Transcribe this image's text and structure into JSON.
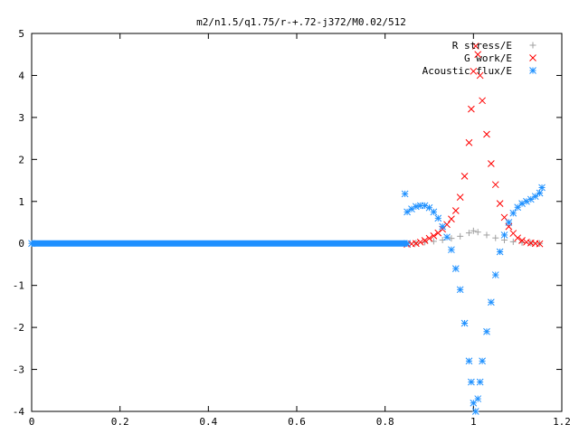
{
  "chart_data": {
    "type": "scatter",
    "title": "m2/n1.5/q1.75/r-+.72-j372/M0.02/512",
    "xlabel": "",
    "ylabel": "",
    "xlim": [
      0,
      1.2
    ],
    "ylim": [
      -4,
      5
    ],
    "x_ticks": [
      "0",
      "0.2",
      "0.4",
      "0.6",
      "0.8",
      "1",
      "1.2"
    ],
    "y_ticks": [
      "-4",
      "-3",
      "-2",
      "-1",
      "0",
      "1",
      "2",
      "3",
      "4",
      "5"
    ],
    "grid": false,
    "legend_position": "top-right",
    "series": [
      {
        "name": "R stress/E",
        "marker": "plus",
        "color": "#a0a0a0",
        "points": [
          [
            0.85,
            0.0
          ],
          [
            0.87,
            0.01
          ],
          [
            0.89,
            0.03
          ],
          [
            0.91,
            0.05
          ],
          [
            0.93,
            0.08
          ],
          [
            0.95,
            0.12
          ],
          [
            0.97,
            0.17
          ],
          [
            0.99,
            0.25
          ],
          [
            1.0,
            0.3
          ],
          [
            1.01,
            0.27
          ],
          [
            1.03,
            0.2
          ],
          [
            1.05,
            0.13
          ],
          [
            1.07,
            0.08
          ],
          [
            1.09,
            0.04
          ],
          [
            1.11,
            0.02
          ],
          [
            1.13,
            0.01
          ],
          [
            1.15,
            0.0
          ]
        ]
      },
      {
        "name": "G work/E",
        "marker": "cross",
        "color": "#ff0000",
        "points": [
          [
            0.85,
            -0.02
          ],
          [
            0.86,
            -0.01
          ],
          [
            0.87,
            0.0
          ],
          [
            0.88,
            0.03
          ],
          [
            0.89,
            0.07
          ],
          [
            0.9,
            0.12
          ],
          [
            0.91,
            0.18
          ],
          [
            0.92,
            0.25
          ],
          [
            0.93,
            0.34
          ],
          [
            0.94,
            0.45
          ],
          [
            0.95,
            0.58
          ],
          [
            0.96,
            0.78
          ],
          [
            0.97,
            1.1
          ],
          [
            0.98,
            1.6
          ],
          [
            0.99,
            2.4
          ],
          [
            0.995,
            3.2
          ],
          [
            1.0,
            4.1
          ],
          [
            1.005,
            4.7
          ],
          [
            1.01,
            4.5
          ],
          [
            1.015,
            4.0
          ],
          [
            1.02,
            3.4
          ],
          [
            1.03,
            2.6
          ],
          [
            1.04,
            1.9
          ],
          [
            1.05,
            1.4
          ],
          [
            1.06,
            0.95
          ],
          [
            1.07,
            0.62
          ],
          [
            1.08,
            0.4
          ],
          [
            1.09,
            0.24
          ],
          [
            1.1,
            0.13
          ],
          [
            1.11,
            0.07
          ],
          [
            1.12,
            0.03
          ],
          [
            1.13,
            0.01
          ],
          [
            1.14,
            0.0
          ],
          [
            1.15,
            -0.01
          ]
        ]
      },
      {
        "name": "Acoustic flux/E",
        "marker": "star",
        "color": "#1e90ff",
        "points": [
          [
            0.0,
            0.0
          ],
          [
            0.85,
            0.0
          ],
          [
            0.845,
            1.18
          ],
          [
            0.85,
            0.75
          ],
          [
            0.86,
            0.82
          ],
          [
            0.87,
            0.88
          ],
          [
            0.88,
            0.9
          ],
          [
            0.89,
            0.9
          ],
          [
            0.9,
            0.85
          ],
          [
            0.91,
            0.75
          ],
          [
            0.92,
            0.6
          ],
          [
            0.93,
            0.4
          ],
          [
            0.94,
            0.15
          ],
          [
            0.95,
            -0.15
          ],
          [
            0.96,
            -0.6
          ],
          [
            0.97,
            -1.1
          ],
          [
            0.98,
            -1.9
          ],
          [
            0.99,
            -2.8
          ],
          [
            0.995,
            -3.3
          ],
          [
            1.0,
            -3.8
          ],
          [
            1.005,
            -4.0
          ],
          [
            1.01,
            -3.7
          ],
          [
            1.015,
            -3.3
          ],
          [
            1.02,
            -2.8
          ],
          [
            1.03,
            -2.1
          ],
          [
            1.04,
            -1.4
          ],
          [
            1.05,
            -0.75
          ],
          [
            1.06,
            -0.2
          ],
          [
            1.07,
            0.2
          ],
          [
            1.08,
            0.5
          ],
          [
            1.09,
            0.72
          ],
          [
            1.1,
            0.86
          ],
          [
            1.11,
            0.95
          ],
          [
            1.12,
            1.0
          ],
          [
            1.13,
            1.05
          ],
          [
            1.14,
            1.12
          ],
          [
            1.15,
            1.2
          ],
          [
            1.155,
            1.33
          ]
        ]
      }
    ]
  }
}
